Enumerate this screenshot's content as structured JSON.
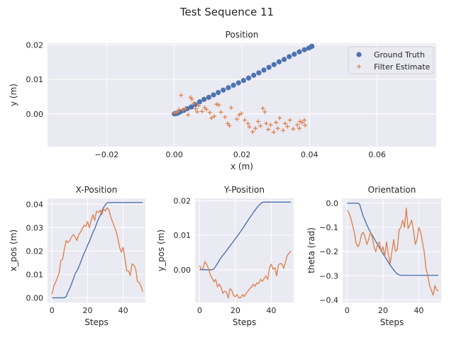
{
  "figure": {
    "title": "Test Sequence 11"
  },
  "colors": {
    "truth": "#4c72b0",
    "estimate": "#dd8452",
    "axes_bg": "#eaeaf2",
    "grid": "#ffffff"
  },
  "chart_data": [
    {
      "id": "position",
      "type": "scatter",
      "title": "Position",
      "xlabel": "x (m)",
      "ylabel": "y (m)",
      "xlim": [
        -0.0375,
        0.0775
      ],
      "ylim": [
        -0.0095,
        0.0205
      ],
      "xticks": [
        -0.02,
        0.0,
        0.02,
        0.04,
        0.06
      ],
      "xtick_labels": [
        "−0.02",
        "0.00",
        "0.02",
        "0.04",
        "0.06"
      ],
      "yticks": [
        0.0,
        0.01,
        0.02
      ],
      "ytick_labels": [
        "0.00",
        "0.01",
        "0.02"
      ],
      "grid": true,
      "legend": "top-right",
      "series": [
        {
          "name": "Ground Truth",
          "marker": "circle",
          "points": [
            [
              0.0,
              0.0
            ],
            [
              0.0003,
              0.0001
            ],
            [
              0.0006,
              0.0001
            ],
            [
              0.001,
              0.0002
            ],
            [
              0.0018,
              0.0006
            ],
            [
              0.0028,
              0.001
            ],
            [
              0.0038,
              0.0015
            ],
            [
              0.005,
              0.002
            ],
            [
              0.0062,
              0.0027
            ],
            [
              0.0075,
              0.0035
            ],
            [
              0.0088,
              0.0042
            ],
            [
              0.0102,
              0.0048
            ],
            [
              0.0116,
              0.0055
            ],
            [
              0.013,
              0.0062
            ],
            [
              0.0145,
              0.0069
            ],
            [
              0.016,
              0.0076
            ],
            [
              0.0175,
              0.0083
            ],
            [
              0.019,
              0.009
            ],
            [
              0.0205,
              0.0097
            ],
            [
              0.022,
              0.0104
            ],
            [
              0.0235,
              0.0112
            ],
            [
              0.025,
              0.0119
            ],
            [
              0.0265,
              0.0127
            ],
            [
              0.028,
              0.0135
            ],
            [
              0.0295,
              0.0143
            ],
            [
              0.031,
              0.0151
            ],
            [
              0.0325,
              0.0158
            ],
            [
              0.034,
              0.0166
            ],
            [
              0.0355,
              0.0173
            ],
            [
              0.037,
              0.018
            ],
            [
              0.0385,
              0.0186
            ],
            [
              0.0398,
              0.0191
            ],
            [
              0.0405,
              0.0195
            ],
            [
              0.0407,
              0.0196
            ],
            [
              0.0407,
              0.0196
            ]
          ]
        },
        {
          "name": "Filter Estimate",
          "marker": "plus",
          "points": [
            [
              0.0,
              0.0003
            ],
            [
              0.0008,
              0.0005
            ],
            [
              0.0014,
              0.0012
            ],
            [
              0.002,
              0.0054
            ],
            [
              0.0026,
              0.0012
            ],
            [
              0.0033,
              0.0016
            ],
            [
              0.0041,
              -0.0003
            ],
            [
              0.0048,
              0.0048
            ],
            [
              0.0052,
              0.0043
            ],
            [
              0.0058,
              0.0031
            ],
            [
              0.0063,
              0.0015
            ],
            [
              0.0068,
              0.0006
            ],
            [
              0.0072,
              0.0024
            ],
            [
              0.0082,
              0.0007
            ],
            [
              0.009,
              0.0018
            ],
            [
              0.0095,
              0.0013
            ],
            [
              0.0105,
              0.0004
            ],
            [
              0.011,
              -0.0012
            ],
            [
              0.0118,
              -0.0007
            ],
            [
              0.0125,
              0.0028
            ],
            [
              0.0132,
              0.0026
            ],
            [
              0.0138,
              0.0005
            ],
            [
              0.015,
              -0.0009
            ],
            [
              0.0158,
              -0.0028
            ],
            [
              0.0163,
              -0.0034
            ],
            [
              0.0168,
              0.0018
            ],
            [
              0.0185,
              -0.0015
            ],
            [
              0.0192,
              -0.0003
            ],
            [
              0.0198,
              0.0001
            ],
            [
              0.0208,
              -0.0018
            ],
            [
              0.0218,
              -0.0028
            ],
            [
              0.0222,
              -0.0038
            ],
            [
              0.0232,
              -0.0052
            ],
            [
              0.024,
              -0.0042
            ],
            [
              0.0248,
              -0.0022
            ],
            [
              0.0255,
              -0.0035
            ],
            [
              0.0262,
              0.0016
            ],
            [
              0.0268,
              0.0006
            ],
            [
              0.0272,
              -0.0028
            ],
            [
              0.0278,
              -0.0045
            ],
            [
              0.0285,
              -0.0032
            ],
            [
              0.0294,
              -0.0053
            ],
            [
              0.0301,
              -0.0025
            ],
            [
              0.0306,
              -0.0042
            ],
            [
              0.0312,
              -0.0012
            ],
            [
              0.0322,
              -0.0048
            ],
            [
              0.0328,
              -0.0028
            ],
            [
              0.0335,
              -0.0037
            ],
            [
              0.0342,
              -0.0018
            ],
            [
              0.0352,
              -0.0044
            ],
            [
              0.0364,
              -0.0032
            ],
            [
              0.0372,
              -0.0022
            ],
            [
              0.0378,
              -0.0025
            ],
            [
              0.0385,
              -0.0018
            ],
            [
              0.037,
              -0.0042
            ],
            [
              0.0387,
              -0.0033
            ]
          ]
        }
      ]
    },
    {
      "id": "x-position",
      "type": "line",
      "title": "X-Position",
      "xlabel": "Steps",
      "ylabel": "x_pos (m)",
      "xlim": [
        -2.5,
        52.5
      ],
      "ylim": [
        -0.002,
        0.0425
      ],
      "xticks": [
        0,
        20,
        40
      ],
      "xtick_labels": [
        "0",
        "20",
        "40"
      ],
      "yticks": [
        0.0,
        0.01,
        0.02,
        0.03,
        0.04
      ],
      "ytick_labels": [
        "0.00",
        "0.01",
        "0.02",
        "0.03",
        "0.04"
      ],
      "grid": true,
      "series": [
        {
          "name": "Ground Truth",
          "values": [
            0.0,
            0.0,
            0.0,
            0.0,
            0.0,
            0.0,
            0.0,
            0.0,
            0.0005,
            0.0025,
            0.004,
            0.006,
            0.008,
            0.0102,
            0.0115,
            0.013,
            0.015,
            0.017,
            0.019,
            0.0205,
            0.0225,
            0.024,
            0.026,
            0.028,
            0.0295,
            0.0315,
            0.0335,
            0.035,
            0.037,
            0.0385,
            0.0398,
            0.0405,
            0.0407,
            0.0407,
            0.0407,
            0.0407,
            0.0407,
            0.0407,
            0.0407,
            0.0407,
            0.0407,
            0.0407,
            0.0407,
            0.0407,
            0.0407,
            0.0407,
            0.0407,
            0.0407,
            0.0407,
            0.0407,
            0.0407,
            0.0407
          ]
        },
        {
          "name": "Filter Estimate",
          "values": [
            0.0015,
            0.005,
            0.0065,
            0.0085,
            0.0105,
            0.016,
            0.0165,
            0.021,
            0.0245,
            0.0235,
            0.0245,
            0.026,
            0.027,
            0.026,
            0.0245,
            0.027,
            0.028,
            0.0295,
            0.031,
            0.0305,
            0.0325,
            0.03,
            0.033,
            0.0355,
            0.033,
            0.037,
            0.0365,
            0.0375,
            0.0355,
            0.038,
            0.037,
            0.0385,
            0.0375,
            0.0345,
            0.0325,
            0.0305,
            0.0285,
            0.0255,
            0.0215,
            0.0195,
            0.0215,
            0.0165,
            0.0115,
            0.0115,
            0.0095,
            0.0145,
            0.014,
            0.0125,
            0.007,
            0.0065,
            0.005,
            0.0025
          ]
        }
      ]
    },
    {
      "id": "y-position",
      "type": "line",
      "title": "Y-Position",
      "xlabel": "Steps",
      "ylabel": "y_pos (m)",
      "xlim": [
        -2.5,
        52.5
      ],
      "ylim": [
        -0.0095,
        0.0207
      ],
      "xticks": [
        0,
        20,
        40
      ],
      "xtick_labels": [
        "0",
        "20",
        "40"
      ],
      "yticks": [
        0.0,
        0.01,
        0.02
      ],
      "ytick_labels": [
        "0.00",
        "0.01",
        "0.02"
      ],
      "grid": true,
      "series": [
        {
          "name": "Ground Truth",
          "values": [
            0.0,
            0.0,
            0.0,
            0.0,
            0.0,
            0.0,
            0.0,
            0.0,
            0.0002,
            0.001,
            0.0018,
            0.0027,
            0.0035,
            0.0042,
            0.0048,
            0.0055,
            0.0062,
            0.0069,
            0.0076,
            0.0083,
            0.009,
            0.0097,
            0.0104,
            0.0112,
            0.0119,
            0.0127,
            0.0135,
            0.0143,
            0.0151,
            0.0158,
            0.0166,
            0.0173,
            0.018,
            0.0186,
            0.0191,
            0.0195,
            0.0196,
            0.0196,
            0.0196,
            0.0196,
            0.0196,
            0.0196,
            0.0196,
            0.0196,
            0.0196,
            0.0196,
            0.0196,
            0.0196,
            0.0196,
            0.0196,
            0.0196,
            0.0196
          ]
        },
        {
          "name": "Filter Estimate",
          "values": [
            0.0012,
            0.0,
            0.0005,
            0.0023,
            0.0015,
            0.0003,
            -0.0015,
            -0.0025,
            -0.0035,
            -0.0028,
            -0.005,
            -0.0042,
            -0.0052,
            -0.0068,
            -0.0062,
            -0.0065,
            -0.0082,
            -0.0055,
            -0.006,
            -0.0075,
            -0.0078,
            -0.0072,
            -0.0082,
            -0.0081,
            -0.0072,
            -0.0078,
            -0.0068,
            -0.0062,
            -0.0055,
            -0.005,
            -0.0042,
            -0.0048,
            -0.0038,
            -0.004,
            -0.0028,
            -0.0034,
            -0.0025,
            -0.0018,
            -0.0028,
            0.0005,
            0.0016,
            0.0001,
            0.0006,
            -0.0018,
            0.0014,
            0.0018,
            0.0016,
            0.0004,
            0.0025,
            0.0042,
            0.0048,
            0.0054
          ]
        }
      ]
    },
    {
      "id": "orientation",
      "type": "line",
      "title": "Orientation",
      "xlabel": "Steps",
      "ylabel": "theta (rad)",
      "xlim": [
        -2.5,
        52.5
      ],
      "ylim": [
        -0.41,
        0.02
      ],
      "xticks": [
        0,
        20,
        40
      ],
      "xtick_labels": [
        "0",
        "20",
        "40"
      ],
      "yticks": [
        0.0,
        -0.1,
        -0.2,
        -0.3,
        -0.4
      ],
      "ytick_labels": [
        "0.0",
        "−0.1",
        "−0.2",
        "−0.3",
        "−0.4"
      ],
      "grid": true,
      "series": [
        {
          "name": "Ground Truth",
          "values": [
            0.0,
            0.0,
            0.0,
            0.0,
            0.0,
            0.0,
            0.0,
            -0.005,
            -0.03,
            -0.055,
            -0.07,
            -0.09,
            -0.105,
            -0.12,
            -0.132,
            -0.145,
            -0.158,
            -0.17,
            -0.183,
            -0.196,
            -0.208,
            -0.22,
            -0.232,
            -0.244,
            -0.256,
            -0.266,
            -0.276,
            -0.285,
            -0.292,
            -0.296,
            -0.298,
            -0.298,
            -0.298,
            -0.298,
            -0.298,
            -0.298,
            -0.298,
            -0.298,
            -0.298,
            -0.298,
            -0.298,
            -0.298,
            -0.298,
            -0.298,
            -0.298,
            -0.298,
            -0.298,
            -0.298,
            -0.298,
            -0.298,
            -0.298,
            -0.298
          ]
        },
        {
          "name": "Filter Estimate",
          "values": [
            -0.03,
            -0.04,
            -0.06,
            -0.09,
            -0.12,
            -0.165,
            -0.18,
            -0.165,
            -0.13,
            -0.12,
            -0.14,
            -0.17,
            -0.15,
            -0.12,
            -0.14,
            -0.18,
            -0.2,
            -0.17,
            -0.16,
            -0.2,
            -0.18,
            -0.22,
            -0.16,
            -0.21,
            -0.25,
            -0.2,
            -0.15,
            -0.2,
            -0.19,
            -0.11,
            -0.1,
            -0.07,
            -0.1,
            -0.02,
            -0.105,
            -0.09,
            -0.07,
            -0.11,
            -0.17,
            -0.15,
            -0.1,
            -0.12,
            -0.16,
            -0.2,
            -0.27,
            -0.3,
            -0.34,
            -0.36,
            -0.38,
            -0.34,
            -0.36,
            -0.36
          ]
        }
      ]
    }
  ]
}
